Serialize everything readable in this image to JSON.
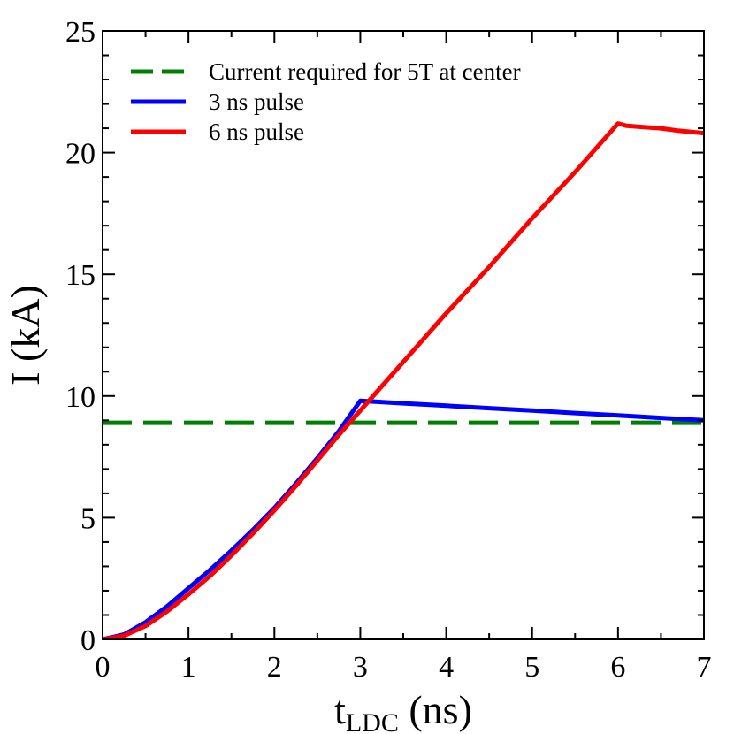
{
  "chart_data": {
    "type": "line",
    "title": "",
    "xlabel_main": "t",
    "xlabel_sub": "LDC",
    "xlabel_unit": " (ns)",
    "ylabel": "I (kA)",
    "xlim": [
      0,
      7
    ],
    "ylim": [
      0,
      25
    ],
    "x_ticks": [
      0,
      1,
      2,
      3,
      4,
      5,
      6,
      7
    ],
    "y_ticks": [
      0,
      5,
      10,
      15,
      20,
      25
    ],
    "x_tick_labels": [
      "0",
      "1",
      "2",
      "3",
      "4",
      "5",
      "6",
      "7"
    ],
    "y_tick_labels": [
      "0",
      "5",
      "10",
      "15",
      "20",
      "25"
    ],
    "grid": false,
    "legend_position": "top-left",
    "series": [
      {
        "name": "Current required for 5T at center",
        "color": "#008000",
        "style": "dashed",
        "x": [
          0,
          7
        ],
        "y": [
          8.9,
          8.9
        ]
      },
      {
        "name": "3 ns pulse",
        "color": "#0000ff",
        "style": "solid",
        "x": [
          0,
          0.25,
          0.5,
          0.75,
          1.0,
          1.25,
          1.5,
          1.75,
          2.0,
          2.25,
          2.5,
          2.75,
          3.0,
          3.5,
          4.0,
          4.5,
          5.0,
          5.5,
          6.0,
          6.5,
          7.0
        ],
        "y": [
          0,
          0.2,
          0.7,
          1.35,
          2.1,
          2.85,
          3.65,
          4.5,
          5.4,
          6.4,
          7.45,
          8.55,
          9.8,
          9.7,
          9.6,
          9.5,
          9.4,
          9.3,
          9.2,
          9.1,
          9.0
        ]
      },
      {
        "name": "6 ns pulse",
        "color": "#ff0000",
        "style": "solid",
        "x": [
          0,
          0.25,
          0.5,
          0.75,
          1.0,
          1.25,
          1.5,
          1.75,
          2.0,
          2.25,
          2.5,
          2.75,
          3.0,
          3.5,
          4.0,
          4.5,
          5.0,
          5.5,
          6.0,
          6.1,
          6.3,
          6.5,
          6.7,
          7.0
        ],
        "y": [
          0,
          0.15,
          0.55,
          1.15,
          1.85,
          2.6,
          3.45,
          4.35,
          5.3,
          6.3,
          7.35,
          8.4,
          9.4,
          11.4,
          13.4,
          15.3,
          17.3,
          19.2,
          21.2,
          21.1,
          21.05,
          21.0,
          20.9,
          20.8
        ]
      }
    ]
  }
}
